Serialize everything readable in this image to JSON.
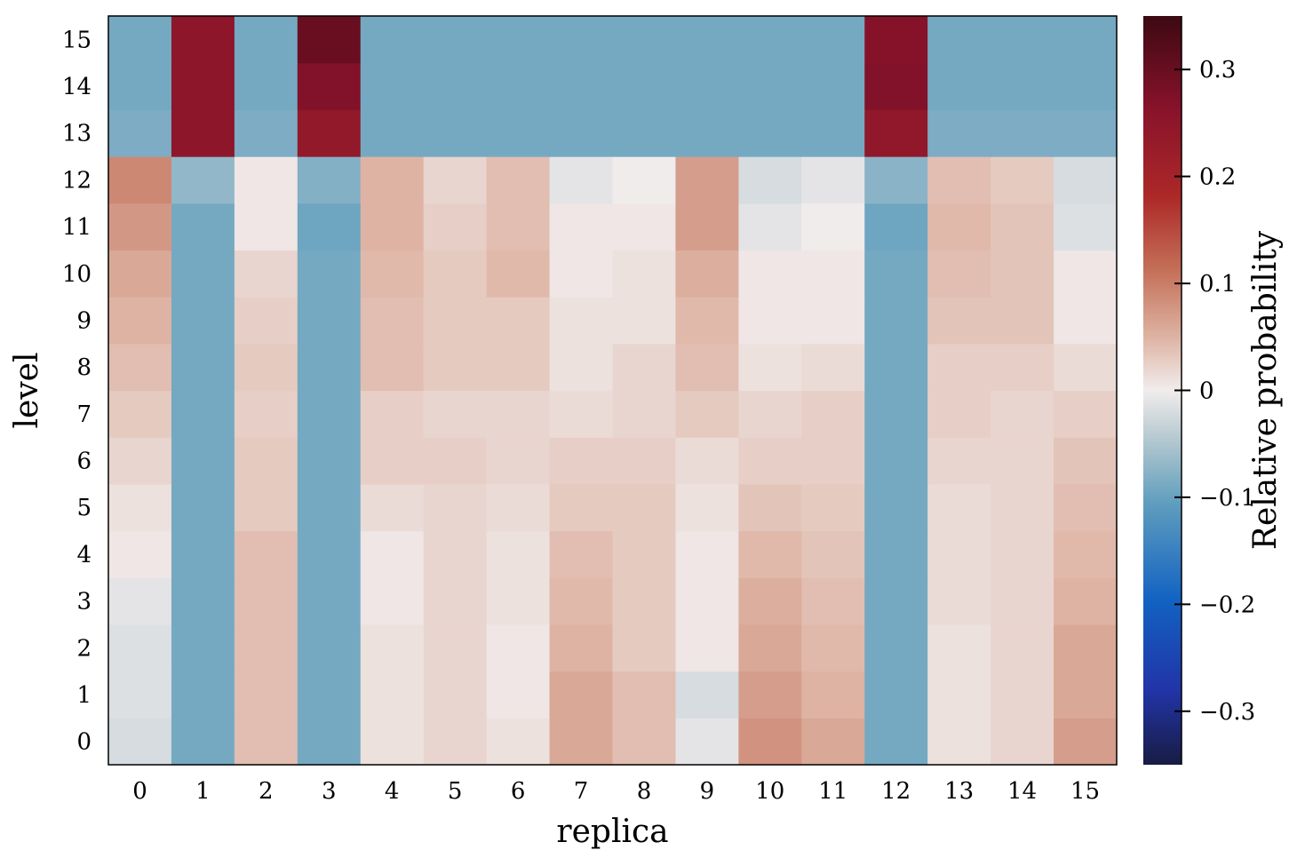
{
  "chart_data": {
    "type": "heatmap",
    "title": "",
    "xlabel": "replica",
    "ylabel": "level",
    "x": [
      0,
      1,
      2,
      3,
      4,
      5,
      6,
      7,
      8,
      9,
      10,
      11,
      12,
      13,
      14,
      15
    ],
    "y": [
      0,
      1,
      2,
      3,
      4,
      5,
      6,
      7,
      8,
      9,
      10,
      11,
      12,
      13,
      14,
      15
    ],
    "colorbar": {
      "label": "Relative probability",
      "range": [
        -0.35,
        0.35
      ],
      "ticks": [
        -0.3,
        -0.2,
        -0.1,
        0,
        0.1,
        0.2,
        0.3
      ],
      "tick_labels": [
        "−0.3",
        "−0.2",
        "−0.1",
        "0",
        "0.1",
        "0.2",
        "0.3"
      ],
      "colormap": "balance"
    },
    "values_description": "rows indexed by level 0..15, columns by replica 0..15",
    "values": [
      [
        -0.02,
        -0.09,
        0.04,
        -0.09,
        0.01,
        0.02,
        0.01,
        0.06,
        0.04,
        -0.01,
        0.08,
        0.06,
        -0.09,
        0.01,
        0.02,
        0.07
      ],
      [
        -0.015,
        -0.09,
        0.04,
        -0.09,
        0.01,
        0.02,
        0.005,
        0.06,
        0.04,
        -0.02,
        0.07,
        0.05,
        -0.09,
        0.01,
        0.02,
        0.06
      ],
      [
        -0.015,
        -0.09,
        0.04,
        -0.09,
        0.01,
        0.02,
        0.005,
        0.05,
        0.03,
        0.005,
        0.06,
        0.045,
        -0.09,
        0.01,
        0.02,
        0.06
      ],
      [
        -0.01,
        -0.09,
        0.04,
        -0.09,
        0.005,
        0.02,
        0.01,
        0.045,
        0.03,
        0.005,
        0.055,
        0.04,
        -0.09,
        0.015,
        0.02,
        0.05
      ],
      [
        0.005,
        -0.09,
        0.04,
        -0.09,
        0.005,
        0.02,
        0.01,
        0.04,
        0.03,
        0.005,
        0.045,
        0.035,
        -0.09,
        0.015,
        0.02,
        0.045
      ],
      [
        0.01,
        -0.09,
        0.03,
        -0.09,
        0.015,
        0.02,
        0.015,
        0.03,
        0.03,
        0.01,
        0.035,
        0.03,
        -0.09,
        0.015,
        0.02,
        0.04
      ],
      [
        0.02,
        -0.09,
        0.03,
        -0.09,
        0.025,
        0.025,
        0.02,
        0.025,
        0.025,
        0.015,
        0.025,
        0.025,
        -0.09,
        0.02,
        0.02,
        0.035
      ],
      [
        0.03,
        -0.09,
        0.025,
        -0.09,
        0.025,
        0.02,
        0.02,
        0.015,
        0.02,
        0.03,
        0.02,
        0.025,
        -0.09,
        0.025,
        0.02,
        0.025
      ],
      [
        0.04,
        -0.09,
        0.03,
        -0.09,
        0.04,
        0.03,
        0.03,
        0.01,
        0.02,
        0.04,
        0.01,
        0.015,
        -0.09,
        0.025,
        0.025,
        0.015
      ],
      [
        0.05,
        -0.09,
        0.025,
        -0.09,
        0.04,
        0.03,
        0.03,
        0.01,
        0.01,
        0.045,
        0.005,
        0.005,
        -0.09,
        0.035,
        0.035,
        0.005
      ],
      [
        0.06,
        -0.09,
        0.02,
        -0.09,
        0.045,
        0.03,
        0.045,
        0.005,
        0.01,
        0.055,
        0.005,
        0.005,
        -0.09,
        0.04,
        0.035,
        0.005
      ],
      [
        0.075,
        -0.09,
        0.005,
        -0.095,
        0.05,
        0.025,
        0.04,
        0.005,
        0.005,
        0.07,
        -0.01,
        0.0,
        -0.095,
        0.045,
        0.035,
        -0.015
      ],
      [
        0.09,
        -0.07,
        0.005,
        -0.08,
        0.05,
        0.02,
        0.04,
        -0.01,
        0.0,
        0.07,
        -0.02,
        -0.01,
        -0.075,
        0.04,
        0.03,
        -0.02
      ],
      [
        -0.085,
        0.25,
        -0.085,
        0.24,
        -0.09,
        -0.09,
        -0.09,
        -0.09,
        -0.09,
        -0.09,
        -0.09,
        -0.09,
        0.245,
        -0.085,
        -0.085,
        -0.085
      ],
      [
        -0.09,
        0.25,
        -0.09,
        0.27,
        -0.09,
        -0.09,
        -0.09,
        -0.09,
        -0.09,
        -0.09,
        -0.09,
        -0.09,
        0.27,
        -0.09,
        -0.09,
        -0.09
      ],
      [
        -0.09,
        0.25,
        -0.09,
        0.3,
        -0.09,
        -0.09,
        -0.09,
        -0.09,
        -0.09,
        -0.09,
        -0.09,
        -0.09,
        0.265,
        -0.09,
        -0.09,
        -0.09
      ]
    ]
  }
}
